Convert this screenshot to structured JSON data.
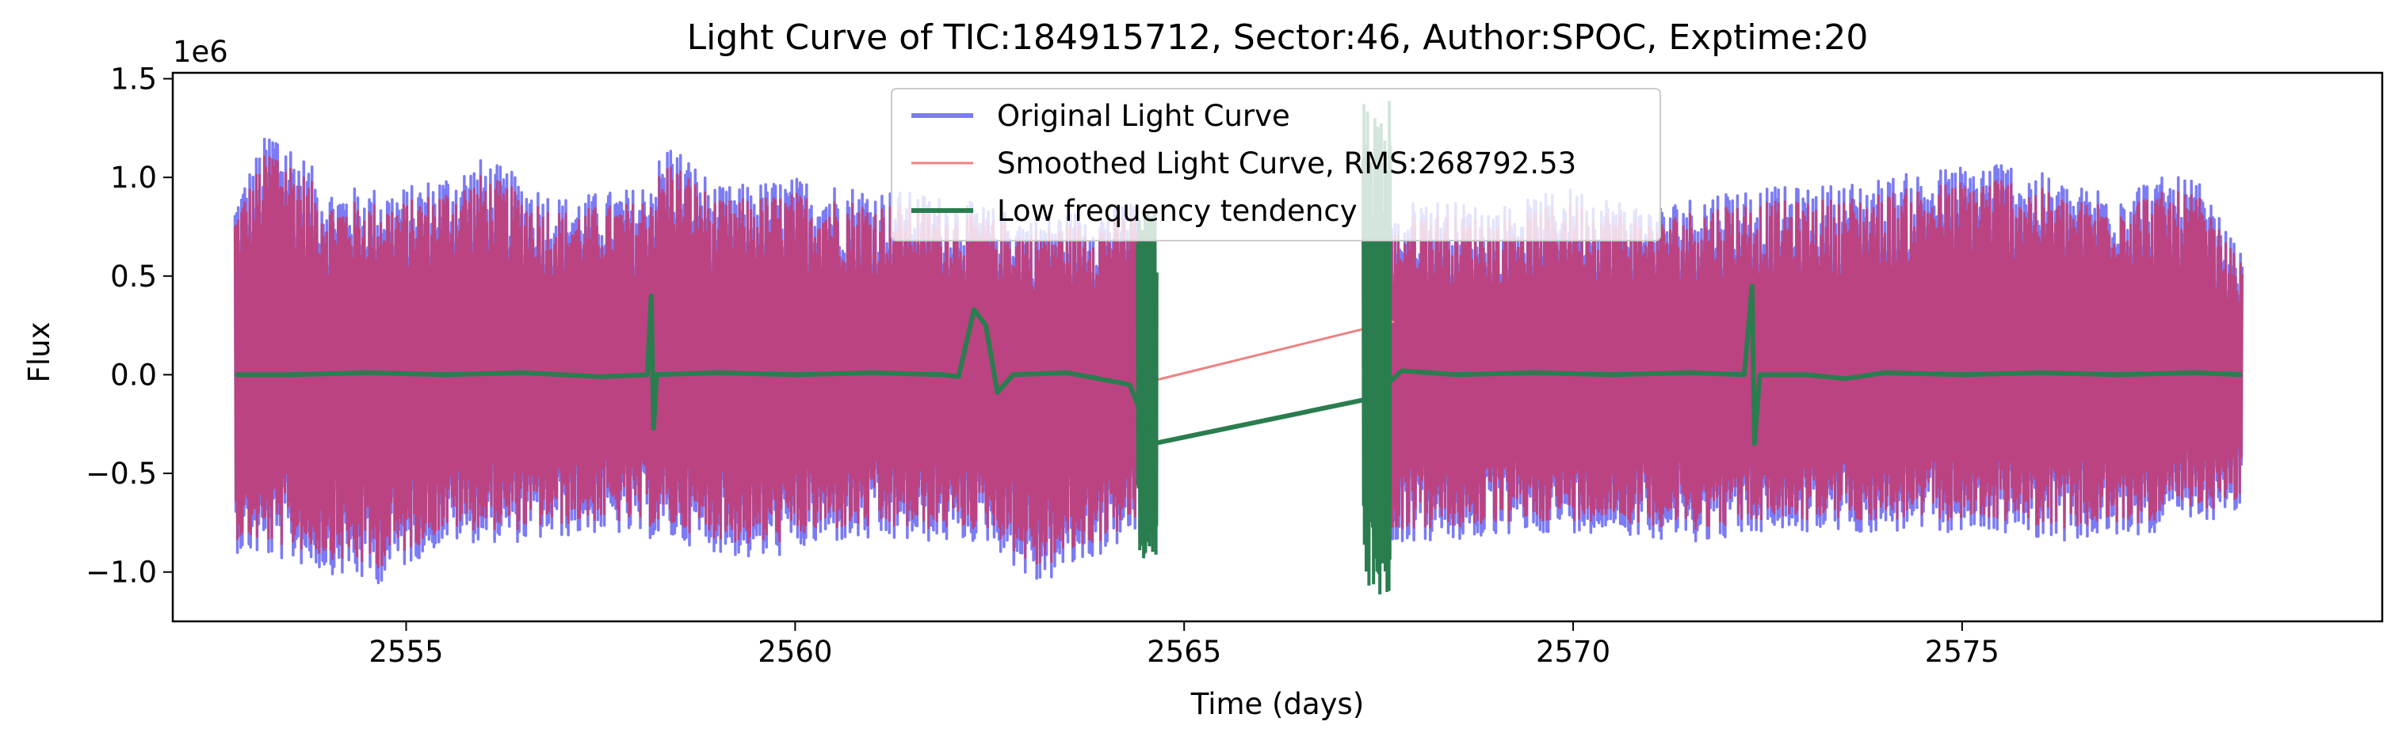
{
  "chart_data": {
    "type": "line",
    "title": "Light Curve of TIC:184915712, Sector:46, Author:SPOC, Exptime:20",
    "xlabel": "Time (days)",
    "ylabel": "Flux",
    "y_offset_label": "1e6",
    "xlim": [
      2552.0,
      2580.4
    ],
    "ylim": [
      -1.25,
      1.53
    ],
    "y_scale_factor": 1000000,
    "x_ticks": [
      2555,
      2560,
      2565,
      2570,
      2575
    ],
    "x_tick_labels": [
      "2555",
      "2560",
      "2565",
      "2570",
      "2575"
    ],
    "y_ticks": [
      -1.0,
      -0.5,
      0.0,
      0.5,
      1.0,
      1.5
    ],
    "y_tick_labels": [
      "−1.0",
      "−0.5",
      "0.0",
      "0.5",
      "1.0",
      "1.5"
    ],
    "grid": false,
    "legend_position": "top-center",
    "segments": [
      {
        "x_start": 2552.8,
        "x_end": 2564.4
      },
      {
        "x_start": 2567.5,
        "x_end": 2578.6
      }
    ],
    "gap": {
      "x_start": 2564.4,
      "x_end": 2567.5
    },
    "series": [
      {
        "name": "Original Light Curve",
        "color": "#7b7bf5",
        "envelope_upper": [
          [
            2552.8,
            0.9
          ],
          [
            2553.3,
            1.3
          ],
          [
            2554.0,
            0.95
          ],
          [
            2555.0,
            0.95
          ],
          [
            2556.0,
            1.1
          ],
          [
            2557.0,
            0.9
          ],
          [
            2558.0,
            0.95
          ],
          [
            2558.4,
            1.2
          ],
          [
            2559.0,
            0.95
          ],
          [
            2560.0,
            1.0
          ],
          [
            2561.0,
            0.95
          ],
          [
            2562.0,
            0.9
          ],
          [
            2563.0,
            0.8
          ],
          [
            2564.0,
            0.85
          ],
          [
            2564.4,
            0.9
          ]
        ],
        "envelope_lower": [
          [
            2552.8,
            -0.9
          ],
          [
            2553.5,
            -0.95
          ],
          [
            2554.6,
            -1.07
          ],
          [
            2555.5,
            -0.85
          ],
          [
            2556.5,
            -0.85
          ],
          [
            2557.5,
            -0.8
          ],
          [
            2558.5,
            -0.85
          ],
          [
            2559.5,
            -0.95
          ],
          [
            2560.5,
            -0.85
          ],
          [
            2561.5,
            -0.85
          ],
          [
            2562.5,
            -0.85
          ],
          [
            2563.1,
            -1.08
          ],
          [
            2564.0,
            -0.9
          ],
          [
            2564.4,
            -0.8
          ]
        ],
        "envelope_upper_2": [
          [
            2567.5,
            0.7
          ],
          [
            2568.0,
            0.9
          ],
          [
            2569.0,
            0.85
          ],
          [
            2570.0,
            0.95
          ],
          [
            2571.0,
            0.85
          ],
          [
            2572.0,
            0.95
          ],
          [
            2573.0,
            0.95
          ],
          [
            2574.0,
            1.0
          ],
          [
            2575.5,
            1.1
          ],
          [
            2576.5,
            0.95
          ],
          [
            2577.5,
            1.0
          ],
          [
            2578.0,
            1.0
          ],
          [
            2578.6,
            0.6
          ]
        ],
        "envelope_lower_2": [
          [
            2567.5,
            -0.85
          ],
          [
            2568.5,
            -0.85
          ],
          [
            2569.5,
            -0.8
          ],
          [
            2570.5,
            -0.8
          ],
          [
            2571.5,
            -0.85
          ],
          [
            2572.5,
            -0.8
          ],
          [
            2573.5,
            -0.8
          ],
          [
            2574.5,
            -0.8
          ],
          [
            2575.5,
            -0.8
          ],
          [
            2576.5,
            -0.85
          ],
          [
            2577.5,
            -0.8
          ],
          [
            2578.6,
            -0.7
          ]
        ]
      },
      {
        "name": "Smoothed Light Curve, RMS:268792.53",
        "color": "#f08080",
        "gap_line": [
          [
            2564.4,
            -0.05
          ],
          [
            2567.7,
            0.27
          ]
        ]
      },
      {
        "name": "Low frequency tendency",
        "color": "#2a7d4f",
        "points": [
          [
            2552.8,
            0.0
          ],
          [
            2553.5,
            0.0
          ],
          [
            2554.5,
            0.01
          ],
          [
            2555.5,
            0.0
          ],
          [
            2556.5,
            0.01
          ],
          [
            2557.5,
            -0.01
          ],
          [
            2558.1,
            0.0
          ],
          [
            2558.15,
            0.4
          ],
          [
            2558.18,
            -0.27
          ],
          [
            2558.22,
            0.0
          ],
          [
            2559.0,
            0.01
          ],
          [
            2560.0,
            0.0
          ],
          [
            2561.0,
            0.01
          ],
          [
            2561.9,
            0.0
          ],
          [
            2562.1,
            -0.01
          ],
          [
            2562.3,
            0.33
          ],
          [
            2562.45,
            0.25
          ],
          [
            2562.6,
            -0.09
          ],
          [
            2562.8,
            0.0
          ],
          [
            2563.5,
            0.01
          ],
          [
            2564.3,
            -0.05
          ],
          [
            2564.6,
            -0.35
          ],
          [
            2567.4,
            -0.12
          ],
          [
            2567.8,
            0.02
          ],
          [
            2568.5,
            0.0
          ],
          [
            2569.5,
            0.01
          ],
          [
            2570.5,
            0.0
          ],
          [
            2571.5,
            0.01
          ],
          [
            2572.2,
            0.0
          ],
          [
            2572.3,
            0.45
          ],
          [
            2572.33,
            -0.35
          ],
          [
            2572.4,
            0.0
          ],
          [
            2573.0,
            0.0
          ],
          [
            2573.5,
            -0.02
          ],
          [
            2574.0,
            0.01
          ],
          [
            2575.0,
            0.0
          ],
          [
            2576.0,
            0.01
          ],
          [
            2577.0,
            0.0
          ],
          [
            2578.0,
            0.01
          ],
          [
            2578.6,
            0.0
          ]
        ],
        "edge_bursts": [
          {
            "x_start": 2564.4,
            "x_end": 2564.65,
            "y_min": -0.93,
            "y_max": 0.85
          },
          {
            "x_start": 2567.3,
            "x_end": 2567.65,
            "y_min": -1.12,
            "y_max": 1.42
          }
        ]
      }
    ]
  }
}
